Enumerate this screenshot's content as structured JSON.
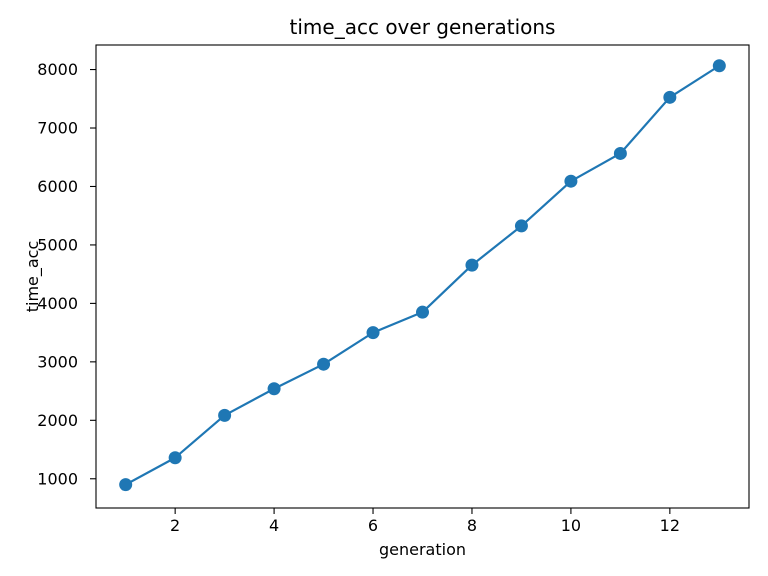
{
  "chart_data": {
    "type": "line",
    "title": "time_acc over generations",
    "xlabel": "generation",
    "ylabel": "time_acc",
    "x": [
      1,
      2,
      3,
      4,
      5,
      6,
      7,
      8,
      9,
      10,
      11,
      12,
      13
    ],
    "y": [
      900,
      1360,
      2085,
      2540,
      2960,
      3500,
      3850,
      4655,
      5325,
      6090,
      6565,
      7525,
      8065
    ],
    "x_ticks": [
      2,
      4,
      6,
      8,
      10,
      12
    ],
    "y_ticks": [
      1000,
      2000,
      3000,
      4000,
      5000,
      6000,
      7000,
      8000
    ],
    "xlim": [
      0.4,
      13.6
    ],
    "ylim": [
      500,
      8420
    ],
    "line_color": "#1f77b4",
    "marker": "circle",
    "grid": false,
    "legend_position": "none",
    "background_color": "#ffffff",
    "spine_color": "#000000"
  }
}
